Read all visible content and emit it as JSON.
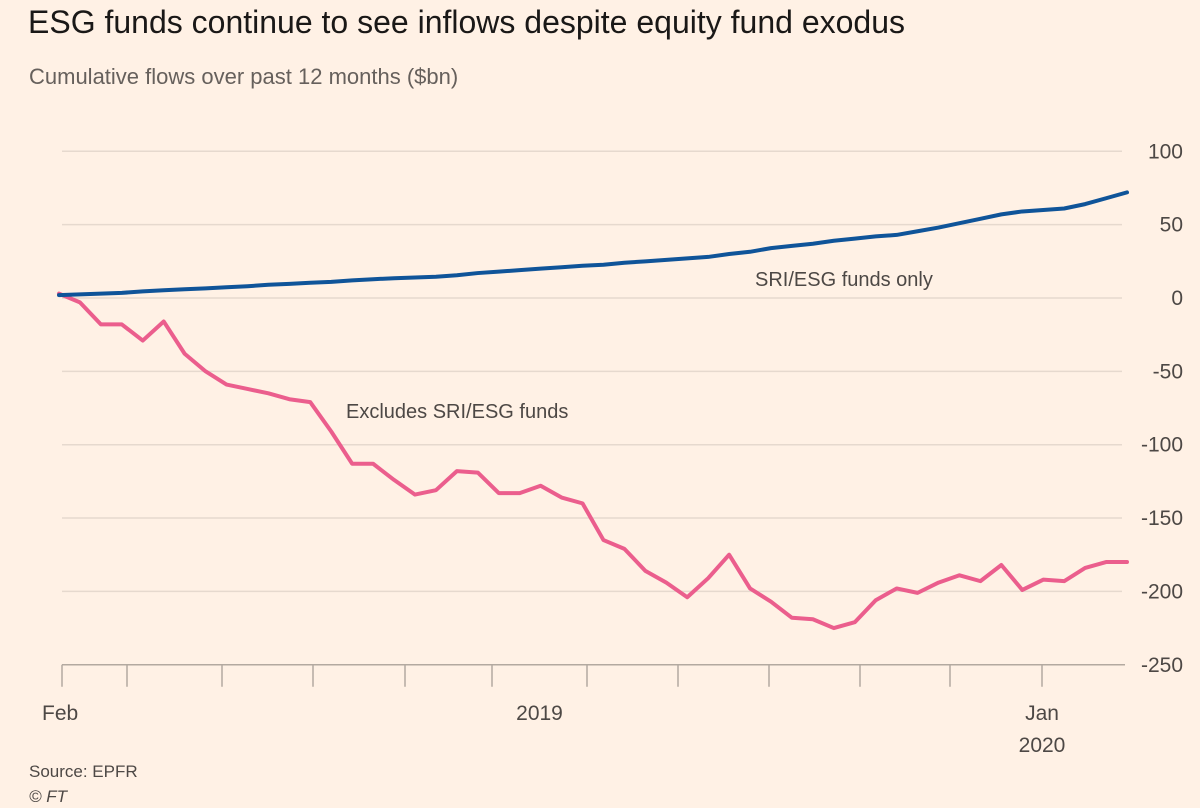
{
  "chart_data": {
    "type": "line",
    "title": "ESG funds continue to see inflows despite equity fund exodus",
    "subtitle": "Cumulative flows over past 12 months ($bn)",
    "xlabel": "",
    "ylabel": "",
    "ylim": [
      -250,
      100
    ],
    "yticks": [
      100,
      50,
      0,
      -50,
      -100,
      -150,
      -200,
      -250
    ],
    "ytick_labels": [
      "100",
      "50",
      "0",
      "-50",
      "-100",
      "-150",
      "-200",
      "-250"
    ],
    "x_period": "weekly, Feb 2019 to Feb 2020",
    "x_tick_count": 12,
    "x_labels": [
      {
        "label": "Feb",
        "tick": 0
      },
      {
        "label": "2019",
        "tick": 5.5
      },
      {
        "label": "Jan",
        "tick": 11
      },
      {
        "label": "2020",
        "tick": 11,
        "second_line": true
      }
    ],
    "grid": true,
    "series": [
      {
        "name": "SRI/ESG funds only",
        "color": "#0f5499",
        "values": [
          2,
          2.5,
          3,
          3.5,
          4.5,
          5.3,
          6,
          6.6,
          7.3,
          8,
          9,
          9.6,
          10.4,
          11,
          12,
          12.8,
          13.5,
          14,
          14.5,
          15.5,
          17,
          18,
          19,
          20,
          21,
          22,
          22.7,
          24,
          25,
          26,
          27,
          28,
          30,
          31.5,
          34,
          35.5,
          37,
          39,
          40.5,
          42,
          43,
          45.5,
          48,
          51,
          54,
          57,
          59,
          60,
          61,
          64,
          68,
          72
        ]
      },
      {
        "name": "Excludes SRI/ESG funds",
        "color": "#eb5e8d",
        "values": [
          3,
          -3,
          -18,
          -18,
          -29,
          -16,
          -38,
          -50,
          -59,
          -62,
          -65,
          -69,
          -71,
          -91,
          -113,
          -113,
          -124,
          -134,
          -131,
          -118,
          -119,
          -133,
          -133,
          -128,
          -136,
          -140,
          -165,
          -171,
          -186,
          -194,
          -204,
          -191,
          -175,
          -198,
          -207,
          -218,
          -219,
          -225,
          -221,
          -206,
          -198,
          -201,
          -194,
          -189,
          -193,
          -182,
          -199,
          -192,
          -193,
          -184,
          -180,
          -180
        ]
      }
    ],
    "annotations": [
      "SRI/ESG funds only",
      "Excludes SRI/ESG funds"
    ]
  },
  "footer": {
    "source": "Source: EPFR",
    "copyright": "© FT"
  }
}
